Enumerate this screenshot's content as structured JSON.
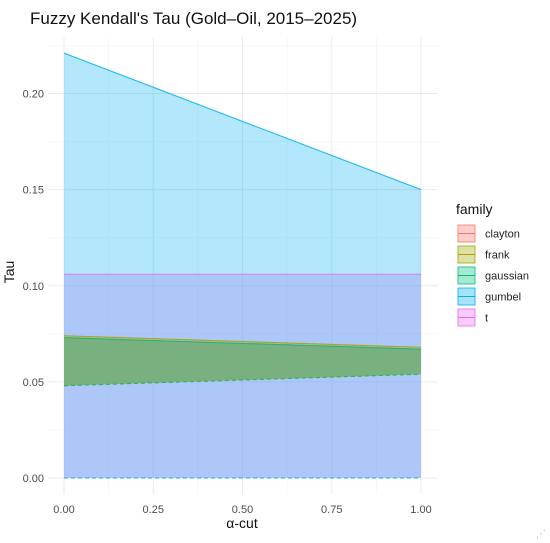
{
  "chart_data": {
    "type": "area",
    "title": "Fuzzy Kendall's Tau (Gold–Oil, 2015–2025)",
    "xlabel": "α-cut",
    "ylabel": "Tau",
    "xlim": [
      0,
      1
    ],
    "ylim": [
      0,
      0.22
    ],
    "x_ticks": [
      "0.00",
      "0.25",
      "0.50",
      "0.75",
      "1.00"
    ],
    "y_ticks": [
      "0.00",
      "0.05",
      "0.10",
      "0.15",
      "0.20"
    ],
    "grid": true,
    "legend": {
      "title": "family",
      "position": "right"
    },
    "series": [
      {
        "name": "clayton",
        "color": "#f8766d",
        "alpha_cut": [
          0,
          1
        ],
        "lower": [
          0.048,
          0.054
        ],
        "upper": [
          0.073,
          0.067
        ]
      },
      {
        "name": "frank",
        "color": "#a3a500",
        "alpha_cut": [
          0,
          1
        ],
        "lower": [
          0.048,
          0.054
        ],
        "upper": [
          0.074,
          0.068
        ]
      },
      {
        "name": "gaussian",
        "color": "#00bf7d",
        "alpha_cut": [
          0,
          1
        ],
        "lower": [
          0.048,
          0.054
        ],
        "upper": [
          0.073,
          0.067
        ]
      },
      {
        "name": "gumbel",
        "color": "#00b0f6",
        "alpha_cut": [
          0,
          1
        ],
        "lower": [
          0.0,
          0.0
        ],
        "upper": [
          0.221,
          0.15
        ]
      },
      {
        "name": "t",
        "color": "#e76bf3",
        "alpha_cut": [
          0,
          1
        ],
        "lower": [
          0.0,
          0.0
        ],
        "upper": [
          0.106,
          0.106
        ]
      }
    ]
  },
  "ui": {
    "resize_grip": "⋰"
  }
}
